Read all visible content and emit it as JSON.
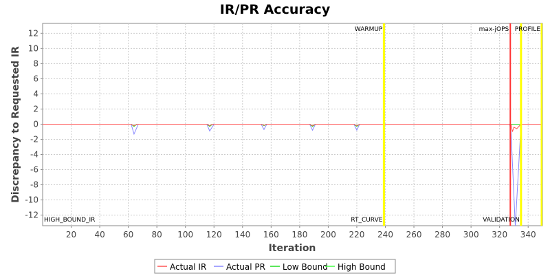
{
  "chart_data": {
    "type": "line",
    "title": "IR/PR Accuracy",
    "xlabel": "Iteration",
    "ylabel": "Discrepancy to Requested IR",
    "xlim": [
      0,
      350
    ],
    "ylim": [
      -13.4,
      13.3
    ],
    "xticks": [
      20,
      40,
      60,
      80,
      100,
      120,
      140,
      160,
      180,
      200,
      220,
      240,
      260,
      280,
      300,
      320,
      340
    ],
    "yticks": [
      12,
      10,
      8,
      6,
      4,
      2,
      0,
      -2,
      -4,
      -6,
      -8,
      -10,
      -12
    ],
    "grid": true,
    "legend_position": "bottom",
    "series": [
      {
        "name": "Actual IR",
        "color": "#ff5555",
        "x": [
          0,
          62,
          64,
          66,
          115,
          117,
          119,
          153,
          155,
          157,
          187,
          189,
          191,
          218,
          220,
          222,
          237,
          327,
          328,
          329,
          330,
          332,
          334,
          335,
          350
        ],
        "y": [
          0,
          0,
          -0.2,
          0,
          0,
          -0.2,
          0,
          0,
          -0.15,
          0,
          0,
          -0.2,
          0,
          0,
          -0.2,
          0,
          0,
          0,
          0,
          -1.0,
          -0.4,
          -0.6,
          -0.2,
          0,
          0
        ]
      },
      {
        "name": "Actual PR",
        "color": "#8888ff",
        "x": [
          0,
          62,
          64,
          67,
          115,
          117,
          120,
          153,
          155,
          157,
          187,
          189,
          191,
          218,
          220,
          222,
          237,
          327,
          328,
          331,
          335,
          350
        ],
        "y": [
          0,
          0,
          -1.3,
          0,
          0,
          -0.9,
          0,
          0,
          -0.7,
          0,
          0,
          -0.8,
          0,
          0,
          -0.8,
          0,
          0,
          0,
          -1.0,
          -13.5,
          0,
          0
        ]
      },
      {
        "name": "Low Bound",
        "color": "#22dd22",
        "x": [
          0,
          62,
          64,
          66,
          115,
          117,
          119,
          153,
          155,
          157,
          187,
          189,
          191,
          218,
          220,
          222,
          237,
          350
        ],
        "y": [
          0,
          0,
          -0.3,
          0,
          0,
          -0.3,
          0,
          0,
          -0.2,
          0,
          0,
          -0.3,
          0,
          0,
          -0.3,
          0,
          0,
          0
        ]
      },
      {
        "name": "High Bound",
        "color": "#44ff44",
        "x": [
          0,
          62,
          64,
          66,
          115,
          117,
          119,
          153,
          155,
          157,
          187,
          189,
          191,
          218,
          220,
          222,
          237,
          350
        ],
        "y": [
          0,
          0,
          -0.2,
          0,
          0,
          -0.2,
          0,
          0,
          -0.15,
          0,
          0,
          -0.2,
          0,
          0,
          -0.2,
          0,
          0,
          0
        ]
      }
    ],
    "markers": [
      {
        "label": "WARMUP",
        "x": 239,
        "color": "#ffff00",
        "label_pos": "top"
      },
      {
        "label": "RT_CURVE",
        "x": 239,
        "color": "#ffff00",
        "label_pos": "bottom"
      },
      {
        "label": "max-jOPS",
        "x": 327.5,
        "color": "#ff3333",
        "label_pos": "top"
      },
      {
        "label": "VALIDATION",
        "x": 335,
        "color": "#ffff00",
        "label_pos": "bottom"
      },
      {
        "label": "PROFILE",
        "x": 350,
        "color": "#ffff00",
        "label_pos": "top"
      }
    ],
    "annotations": [
      {
        "label": "HIGH_BOUND_IR",
        "x": 0,
        "position": "bottom-left"
      }
    ]
  }
}
